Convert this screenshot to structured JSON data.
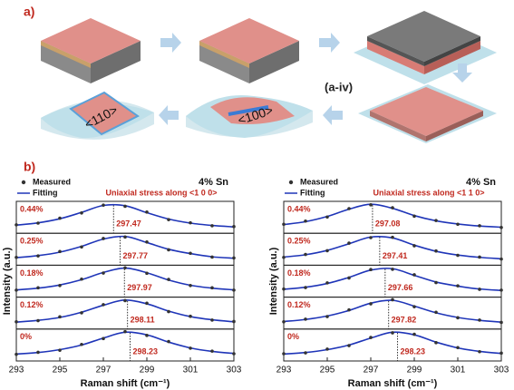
{
  "figure": {
    "a_label": "a)",
    "a_iv": "(a-iv)",
    "dir_110": "<110>",
    "dir_100": "<100>",
    "b_label": "b)"
  },
  "chart_data": [
    {
      "type": "line",
      "title": "4% Sn",
      "subtitle": "Uniaxial stress along <1 0 0>",
      "xlabel": "Raman shift (cm⁻¹)",
      "ylabel": "Intensity (a.u.)",
      "xlim": [
        293,
        303
      ],
      "xticks": [
        293,
        295,
        297,
        299,
        301,
        303
      ],
      "ylim": [
        0,
        1.1
      ],
      "series": [
        {
          "name": "Measured",
          "color": "#333333"
        },
        {
          "name": "Fitting",
          "color": "#1f35b8"
        }
      ],
      "panels": [
        {
          "label": "0.44%",
          "peak": 297.47,
          "x": [
            293,
            294,
            295,
            296,
            297,
            298,
            299,
            300,
            301,
            302,
            303
          ],
          "measured": [
            0.29,
            0.35,
            0.52,
            0.7,
            0.97,
            0.93,
            0.73,
            0.47,
            0.36,
            0.26,
            0.23
          ],
          "fitting": [
            0.28,
            0.36,
            0.5,
            0.72,
            0.96,
            0.95,
            0.71,
            0.49,
            0.35,
            0.27,
            0.22
          ]
        },
        {
          "label": "0.25%",
          "peak": 297.77,
          "x": [
            293,
            294,
            295,
            296,
            297,
            298,
            299,
            300,
            301,
            302,
            303
          ],
          "measured": [
            0.27,
            0.32,
            0.47,
            0.63,
            0.92,
            0.97,
            0.8,
            0.53,
            0.41,
            0.28,
            0.25
          ],
          "fitting": [
            0.26,
            0.33,
            0.45,
            0.65,
            0.9,
            0.99,
            0.78,
            0.55,
            0.4,
            0.29,
            0.24
          ]
        },
        {
          "label": "0.18%",
          "peak": 297.97,
          "x": [
            293,
            294,
            295,
            296,
            297,
            298,
            299,
            300,
            301,
            302,
            303
          ],
          "measured": [
            0.24,
            0.32,
            0.4,
            0.62,
            0.83,
            1.01,
            0.82,
            0.61,
            0.4,
            0.32,
            0.24
          ],
          "fitting": [
            0.25,
            0.31,
            0.42,
            0.6,
            0.85,
            1.0,
            0.84,
            0.59,
            0.41,
            0.31,
            0.25
          ]
        },
        {
          "label": "0.12%",
          "peak": 298.11,
          "x": [
            293,
            294,
            295,
            296,
            297,
            298,
            299,
            300,
            301,
            302,
            303
          ],
          "measured": [
            0.25,
            0.29,
            0.42,
            0.56,
            0.84,
            0.98,
            0.89,
            0.6,
            0.44,
            0.31,
            0.26
          ],
          "fitting": [
            0.24,
            0.3,
            0.4,
            0.58,
            0.82,
            1.0,
            0.87,
            0.62,
            0.43,
            0.32,
            0.25
          ]
        },
        {
          "label": "0%",
          "peak": 298.23,
          "x": [
            293,
            294,
            295,
            296,
            297,
            298,
            299,
            300,
            301,
            302,
            303
          ],
          "measured": [
            0.23,
            0.3,
            0.37,
            0.57,
            0.77,
            1.01,
            0.88,
            0.67,
            0.44,
            0.34,
            0.25
          ],
          "fitting": [
            0.24,
            0.29,
            0.39,
            0.55,
            0.79,
            0.99,
            0.9,
            0.65,
            0.45,
            0.33,
            0.26
          ]
        }
      ]
    },
    {
      "type": "line",
      "title": "4% Sn",
      "subtitle": "Uniaxial stress along <1 1 0>",
      "xlabel": "Raman shift (cm⁻¹)",
      "ylabel": "Intensity (a.u.)",
      "xlim": [
        293,
        303
      ],
      "xticks": [
        293,
        295,
        297,
        299,
        301,
        303
      ],
      "ylim": [
        0,
        1.1
      ],
      "series": [
        {
          "name": "Measured",
          "color": "#333333"
        },
        {
          "name": "Fitting",
          "color": "#1f35b8"
        }
      ],
      "panels": [
        {
          "label": "0.44%",
          "peak": 297.08,
          "x": [
            293,
            294,
            295,
            296,
            297,
            298,
            299,
            300,
            301,
            302,
            303
          ],
          "measured": [
            0.31,
            0.42,
            0.56,
            0.85,
            0.98,
            0.88,
            0.59,
            0.44,
            0.31,
            0.26,
            0.2
          ],
          "fitting": [
            0.3,
            0.4,
            0.58,
            0.83,
            1.0,
            0.86,
            0.61,
            0.43,
            0.32,
            0.25,
            0.21
          ]
        },
        {
          "label": "0.25%",
          "peak": 297.41,
          "x": [
            293,
            294,
            295,
            296,
            297,
            298,
            299,
            300,
            301,
            302,
            303
          ],
          "measured": [
            0.27,
            0.37,
            0.5,
            0.76,
            0.95,
            0.96,
            0.67,
            0.49,
            0.34,
            0.28,
            0.21
          ],
          "fitting": [
            0.28,
            0.36,
            0.51,
            0.74,
            0.97,
            0.94,
            0.69,
            0.48,
            0.35,
            0.27,
            0.22
          ]
        },
        {
          "label": "0.18%",
          "peak": 297.66,
          "x": [
            293,
            294,
            295,
            296,
            297,
            298,
            299,
            300,
            301,
            302,
            303
          ],
          "measured": [
            0.28,
            0.33,
            0.49,
            0.66,
            0.95,
            0.96,
            0.77,
            0.5,
            0.39,
            0.27,
            0.24
          ],
          "fitting": [
            0.27,
            0.34,
            0.47,
            0.68,
            0.93,
            0.98,
            0.75,
            0.52,
            0.38,
            0.28,
            0.23
          ]
        },
        {
          "label": "0.12%",
          "peak": 297.82,
          "x": [
            293,
            294,
            295,
            296,
            297,
            298,
            299,
            300,
            301,
            302,
            303
          ],
          "measured": [
            0.25,
            0.34,
            0.43,
            0.66,
            0.87,
            1.01,
            0.77,
            0.58,
            0.39,
            0.31,
            0.23
          ],
          "fitting": [
            0.26,
            0.33,
            0.45,
            0.64,
            0.89,
            0.99,
            0.79,
            0.56,
            0.4,
            0.3,
            0.24
          ]
        },
        {
          "label": "0%",
          "peak": 298.23,
          "x": [
            293,
            294,
            295,
            296,
            297,
            298,
            299,
            300,
            301,
            302,
            303
          ],
          "measured": [
            0.25,
            0.28,
            0.41,
            0.53,
            0.81,
            0.97,
            0.92,
            0.63,
            0.46,
            0.32,
            0.27
          ],
          "fitting": [
            0.24,
            0.29,
            0.39,
            0.55,
            0.79,
            0.99,
            0.9,
            0.65,
            0.45,
            0.33,
            0.26
          ]
        }
      ]
    }
  ]
}
